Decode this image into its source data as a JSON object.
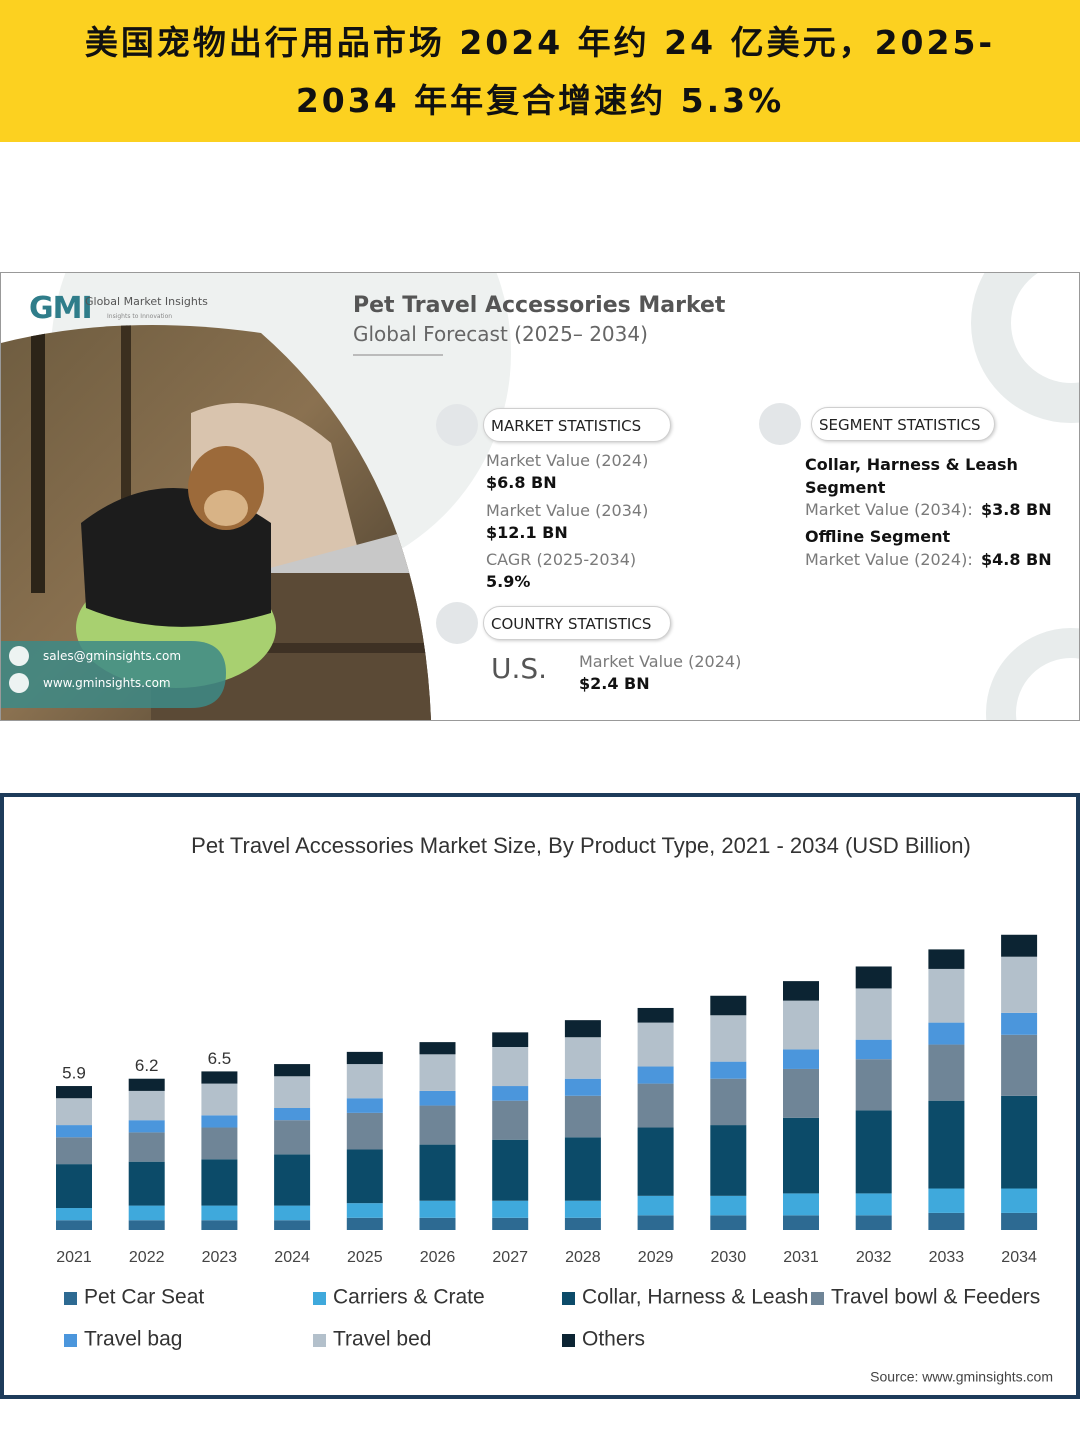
{
  "header": {
    "title_lines": [
      "美国宠物出行用品市场 2024 年约 24 亿美元，2025-",
      "2034 年年复合增速约 5.3%"
    ]
  },
  "infographic": {
    "logo": "GMI",
    "brand": "Global Market Insights",
    "tagline": "Insights to Innovation",
    "title": "Pet Travel Accessories Market",
    "subtitle": "Global Forecast (2025– 2034)",
    "market_statistics": {
      "heading": "MARKET STATISTICS",
      "items": [
        {
          "label": "Market Value (2024)",
          "value": "$6.8 BN"
        },
        {
          "label": "Market Value (2034)",
          "value": "$12.1 BN"
        },
        {
          "label": "CAGR (2025-2034)",
          "value": "5.9%"
        }
      ]
    },
    "segment_statistics": {
      "heading": "SEGMENT STATISTICS",
      "items": [
        {
          "name": "Collar, Harness & Leash Segment",
          "label": "Market Value (2034):",
          "value": "$3.8 BN"
        },
        {
          "name": "Offline Segment",
          "label": "Market Value (2024):",
          "value": "$4.8 BN"
        }
      ]
    },
    "country_statistics": {
      "heading": "COUNTRY STATISTICS",
      "country": "U.S.",
      "label": "Market Value (2024)",
      "value": "$2.4 BN"
    },
    "contact": {
      "email": "sales@gminsights.com",
      "website": "www.gminsights.com"
    }
  },
  "chart_data": {
    "type": "stacked_bar",
    "title": "Pet Travel Accessories Market Size, By Product Type, 2021 - 2034 (USD Billion)",
    "source": "Source: www.gminsights.com",
    "categories": [
      "2021",
      "2022",
      "2023",
      "2024",
      "2025",
      "2026",
      "2027",
      "2028",
      "2029",
      "2030",
      "2031",
      "2032",
      "2033",
      "2034"
    ],
    "ylim": [
      0,
      12.5
    ],
    "total_labels": [
      5.9,
      6.2,
      6.5,
      null,
      null,
      null,
      null,
      null,
      null,
      null,
      null,
      null,
      null,
      null
    ],
    "series": [
      {
        "name": "Pet Car Seat",
        "color": "#2d6a92",
        "values": [
          0.4,
          0.4,
          0.4,
          0.4,
          0.5,
          0.5,
          0.5,
          0.5,
          0.6,
          0.6,
          0.6,
          0.6,
          0.7,
          0.7
        ]
      },
      {
        "name": "Carriers & Crate",
        "color": "#3fa9dc",
        "values": [
          0.5,
          0.6,
          0.6,
          0.6,
          0.6,
          0.7,
          0.7,
          0.7,
          0.8,
          0.8,
          0.9,
          0.9,
          1.0,
          1.0
        ]
      },
      {
        "name": "Collar, Harness & Leash",
        "color": "#0c4b69",
        "values": [
          1.8,
          1.8,
          1.9,
          2.1,
          2.2,
          2.3,
          2.5,
          2.6,
          2.8,
          2.9,
          3.1,
          3.4,
          3.6,
          3.8
        ]
      },
      {
        "name": "Travel bowl & Feeders",
        "color": "#6f8597",
        "values": [
          1.1,
          1.2,
          1.3,
          1.4,
          1.5,
          1.6,
          1.6,
          1.7,
          1.8,
          1.9,
          2.0,
          2.1,
          2.3,
          2.5
        ]
      },
      {
        "name": "Travel bag",
        "color": "#4b96dc",
        "values": [
          0.5,
          0.5,
          0.5,
          0.5,
          0.6,
          0.6,
          0.6,
          0.7,
          0.7,
          0.7,
          0.8,
          0.8,
          0.9,
          0.9
        ]
      },
      {
        "name": "Travel bed",
        "color": "#b3c0cb",
        "values": [
          1.1,
          1.2,
          1.3,
          1.3,
          1.4,
          1.5,
          1.6,
          1.7,
          1.8,
          1.9,
          2.0,
          2.1,
          2.2,
          2.3
        ]
      },
      {
        "name": "Others",
        "color": "#0c2433",
        "values": [
          0.5,
          0.5,
          0.5,
          0.5,
          0.5,
          0.5,
          0.6,
          0.7,
          0.6,
          0.8,
          0.8,
          0.9,
          0.8,
          0.9
        ]
      }
    ]
  }
}
